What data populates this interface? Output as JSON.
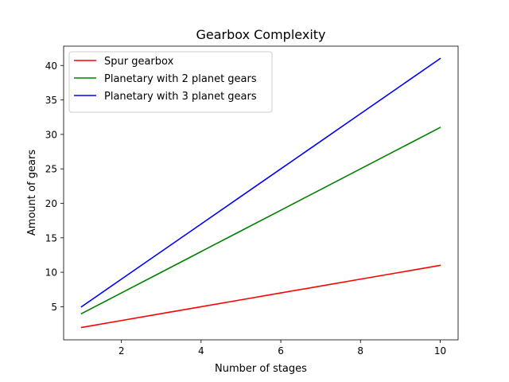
{
  "chart_data": {
    "type": "line",
    "title": "Gearbox Complexity",
    "xlabel": "Number of stages",
    "ylabel": "Amount of gears",
    "x": [
      1,
      2,
      3,
      4,
      5,
      6,
      7,
      8,
      9,
      10
    ],
    "xlim": [
      0.55,
      10.45
    ],
    "ylim": [
      0.2,
      42.8
    ],
    "xticks": [
      2,
      4,
      6,
      8,
      10
    ],
    "yticks": [
      5,
      10,
      15,
      20,
      25,
      30,
      35,
      40
    ],
    "grid": false,
    "legend_position": "top-left",
    "series": [
      {
        "name": "Spur gearbox",
        "color": "#ff0000",
        "values": [
          2,
          3,
          4,
          5,
          6,
          7,
          8,
          9,
          10,
          11
        ]
      },
      {
        "name": "Planetary with 2 planet gears",
        "color": "#008000",
        "values": [
          4,
          7,
          10,
          13,
          16,
          19,
          22,
          25,
          28,
          31
        ]
      },
      {
        "name": "Planetary with 3 planet gears",
        "color": "#0000ff",
        "values": [
          5,
          9,
          13,
          17,
          21,
          25,
          29,
          33,
          37,
          41
        ]
      }
    ]
  }
}
